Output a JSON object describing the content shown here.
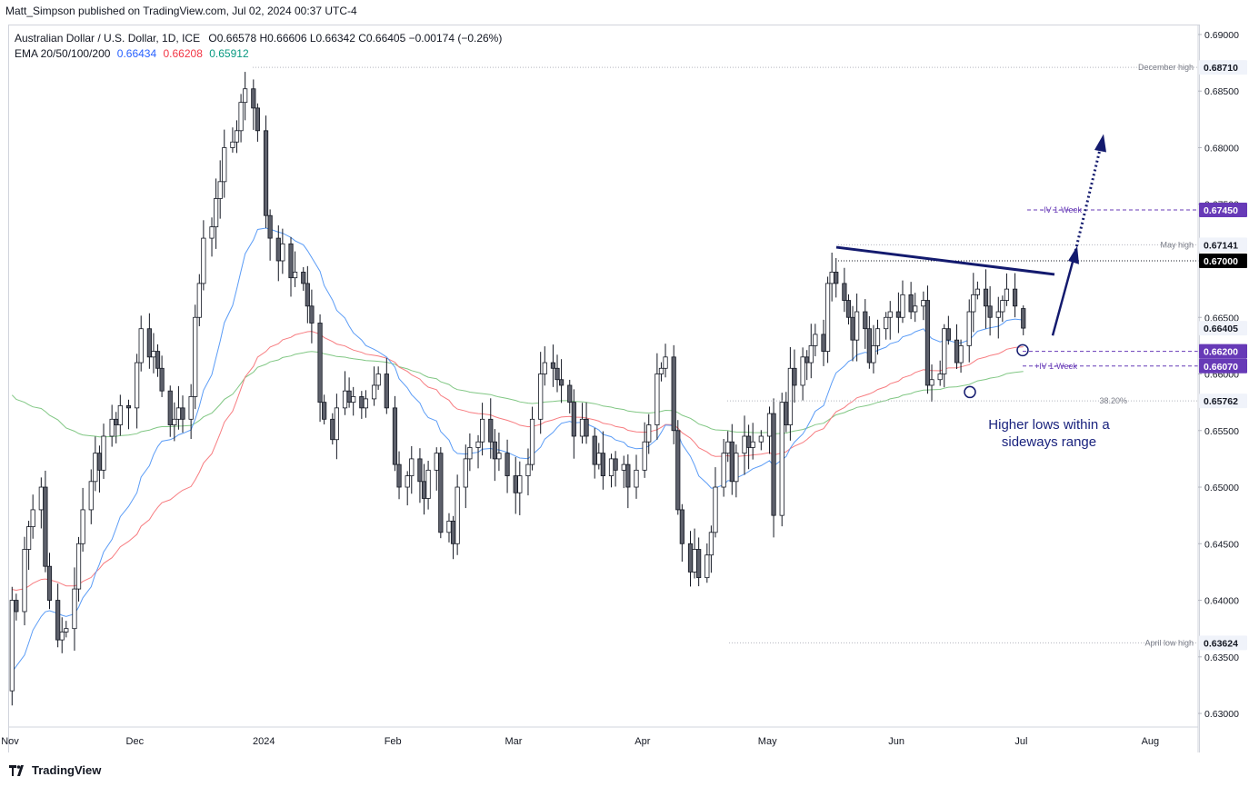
{
  "header": {
    "credit": "Matt_Simpson published on TradingView.com, Jul 02, 2024 00:37 UTC-4"
  },
  "legend": {
    "symbol": "Australian Dollar / U.S. Dollar, 1D, ICE",
    "ohlc": "O0.66578  H0.66606  L0.66342  C0.66405  −0.00174 (−0.26%)",
    "ema_title": "EMA 20/50/100/200",
    "ema20": "0.66434",
    "ema50": "0.66208",
    "ema100": "0.65912"
  },
  "footer": {
    "brand": "TradingView"
  },
  "colors": {
    "up_body": "#ffffff",
    "down_body": "#5d606b",
    "wick": "#131722",
    "ema20": "#5b9cf6",
    "ema50": "#f77c80",
    "ema100": "#81c784",
    "annotation": "#131a6e",
    "accent": "#673ab7"
  },
  "chart_data": {
    "type": "candlestick",
    "ylim": [
      0.6288,
      0.6908
    ],
    "y_ticks": [
      "0.69000",
      "0.68500",
      "0.68000",
      "0.67500",
      "0.67000",
      "0.66500",
      "0.66000",
      "0.65500",
      "0.65000",
      "0.64500",
      "0.64000",
      "0.63500",
      "0.63000"
    ],
    "x_ticks": [
      {
        "label": "Nov",
        "day": 0
      },
      {
        "label": "Dec",
        "day": 30
      },
      {
        "label": "2024",
        "day": 61
      },
      {
        "label": "Feb",
        "day": 92
      },
      {
        "label": "Mar",
        "day": 121
      },
      {
        "label": "Apr",
        "day": 152
      },
      {
        "label": "May",
        "day": 182
      },
      {
        "label": "Jun",
        "day": 213
      },
      {
        "label": "Jul",
        "day": 243
      },
      {
        "label": "Aug",
        "day": 274
      }
    ],
    "price_labels": [
      {
        "text": "0.68710",
        "value": 0.6871,
        "style": "plain"
      },
      {
        "text": "0.67450",
        "value": 0.6745,
        "style": "accent"
      },
      {
        "text": "0.67141",
        "value": 0.67141,
        "style": "plain"
      },
      {
        "text": "0.67000",
        "value": 0.67,
        "style": "dark"
      },
      {
        "text": "0.66405",
        "value": 0.66405,
        "style": "plain"
      },
      {
        "text": "0.66200",
        "value": 0.662,
        "style": "accent"
      },
      {
        "text": "0.66070",
        "value": 0.6607,
        "style": "accent"
      },
      {
        "text": "0.65762",
        "value": 0.65762,
        "style": "plain"
      },
      {
        "text": "0.63624",
        "value": 0.63624,
        "style": "plain"
      }
    ],
    "annotations": {
      "december_high": "December high",
      "may_high": "May high",
      "iv_upper": "-IV 1-Week",
      "iv_lower": "+IV 1-Week",
      "fib": "38.20%",
      "april_low": "April low high",
      "note_line1": "Higher lows within a",
      "note_line2": "sideways range"
    },
    "candles_by_month": [
      {
        "month": "2023-11",
        "closes": [
          0.64,
          0.639,
          0.6445,
          0.6465,
          0.648,
          0.65,
          0.643,
          0.64,
          0.6365,
          0.6372,
          0.6375,
          0.641,
          0.645,
          0.648,
          0.6505,
          0.653,
          0.6515,
          0.6545,
          0.656,
          0.6555,
          0.6572,
          0.657
        ]
      },
      {
        "month": "2023-12",
        "closes": [
          0.661,
          0.664,
          0.6615,
          0.662,
          0.6605,
          0.6585,
          0.6555,
          0.656,
          0.657,
          0.656,
          0.658,
          0.665,
          0.668,
          0.672,
          0.673,
          0.6755,
          0.677,
          0.68,
          0.6805,
          0.6815,
          0.684,
          0.6852,
          0.6835,
          0.6815
        ]
      },
      {
        "month": "2024-01",
        "closes": [
          0.674,
          0.672,
          0.67,
          0.6715,
          0.6685,
          0.669,
          0.668,
          0.666,
          0.6645,
          0.6575,
          0.656,
          0.6542,
          0.657,
          0.6585,
          0.6575,
          0.658,
          0.657,
          0.6578,
          0.659,
          0.66,
          0.657
        ]
      },
      {
        "month": "2024-02",
        "closes": [
          0.652,
          0.65,
          0.651,
          0.6525,
          0.6505,
          0.649,
          0.6515,
          0.653,
          0.646,
          0.647,
          0.645,
          0.65,
          0.6525,
          0.6535,
          0.654,
          0.656,
          0.654,
          0.6525,
          0.653,
          0.651
        ]
      },
      {
        "month": "2024-03",
        "closes": [
          0.6495,
          0.651,
          0.652,
          0.656,
          0.66,
          0.661,
          0.6605,
          0.6595,
          0.659,
          0.6575,
          0.6545,
          0.656,
          0.6545,
          0.652,
          0.653,
          0.651,
          0.6525,
          0.6515,
          0.652,
          0.65,
          0.6515
        ]
      },
      {
        "month": "2024-04",
        "closes": [
          0.654,
          0.6555,
          0.66,
          0.6605,
          0.6615,
          0.655,
          0.648,
          0.645,
          0.6425,
          0.6445,
          0.642,
          0.644,
          0.646,
          0.65,
          0.653,
          0.654,
          0.6505,
          0.653,
          0.6545,
          0.6535,
          0.654,
          0.6545
        ]
      },
      {
        "month": "2024-05",
        "closes": [
          0.6565,
          0.6475,
          0.6575,
          0.6555,
          0.6605,
          0.659,
          0.6615,
          0.661,
          0.6625,
          0.6635,
          0.662,
          0.668,
          0.669,
          0.668,
          0.6665,
          0.665,
          0.663,
          0.6655,
          0.664,
          0.661,
          0.6625,
          0.664,
          0.665,
          0.6655
        ]
      },
      {
        "month": "2024-06",
        "closes": [
          0.665,
          0.667,
          0.6655,
          0.666,
          0.6665,
          0.659,
          0.6595,
          0.66,
          0.664,
          0.663,
          0.661,
          0.6625,
          0.6655,
          0.667,
          0.6675,
          0.666,
          0.665,
          0.6655,
          0.6665,
          0.6675,
          0.666
        ]
      },
      {
        "month": "2024-07",
        "closes": [
          0.66405
        ]
      }
    ]
  }
}
